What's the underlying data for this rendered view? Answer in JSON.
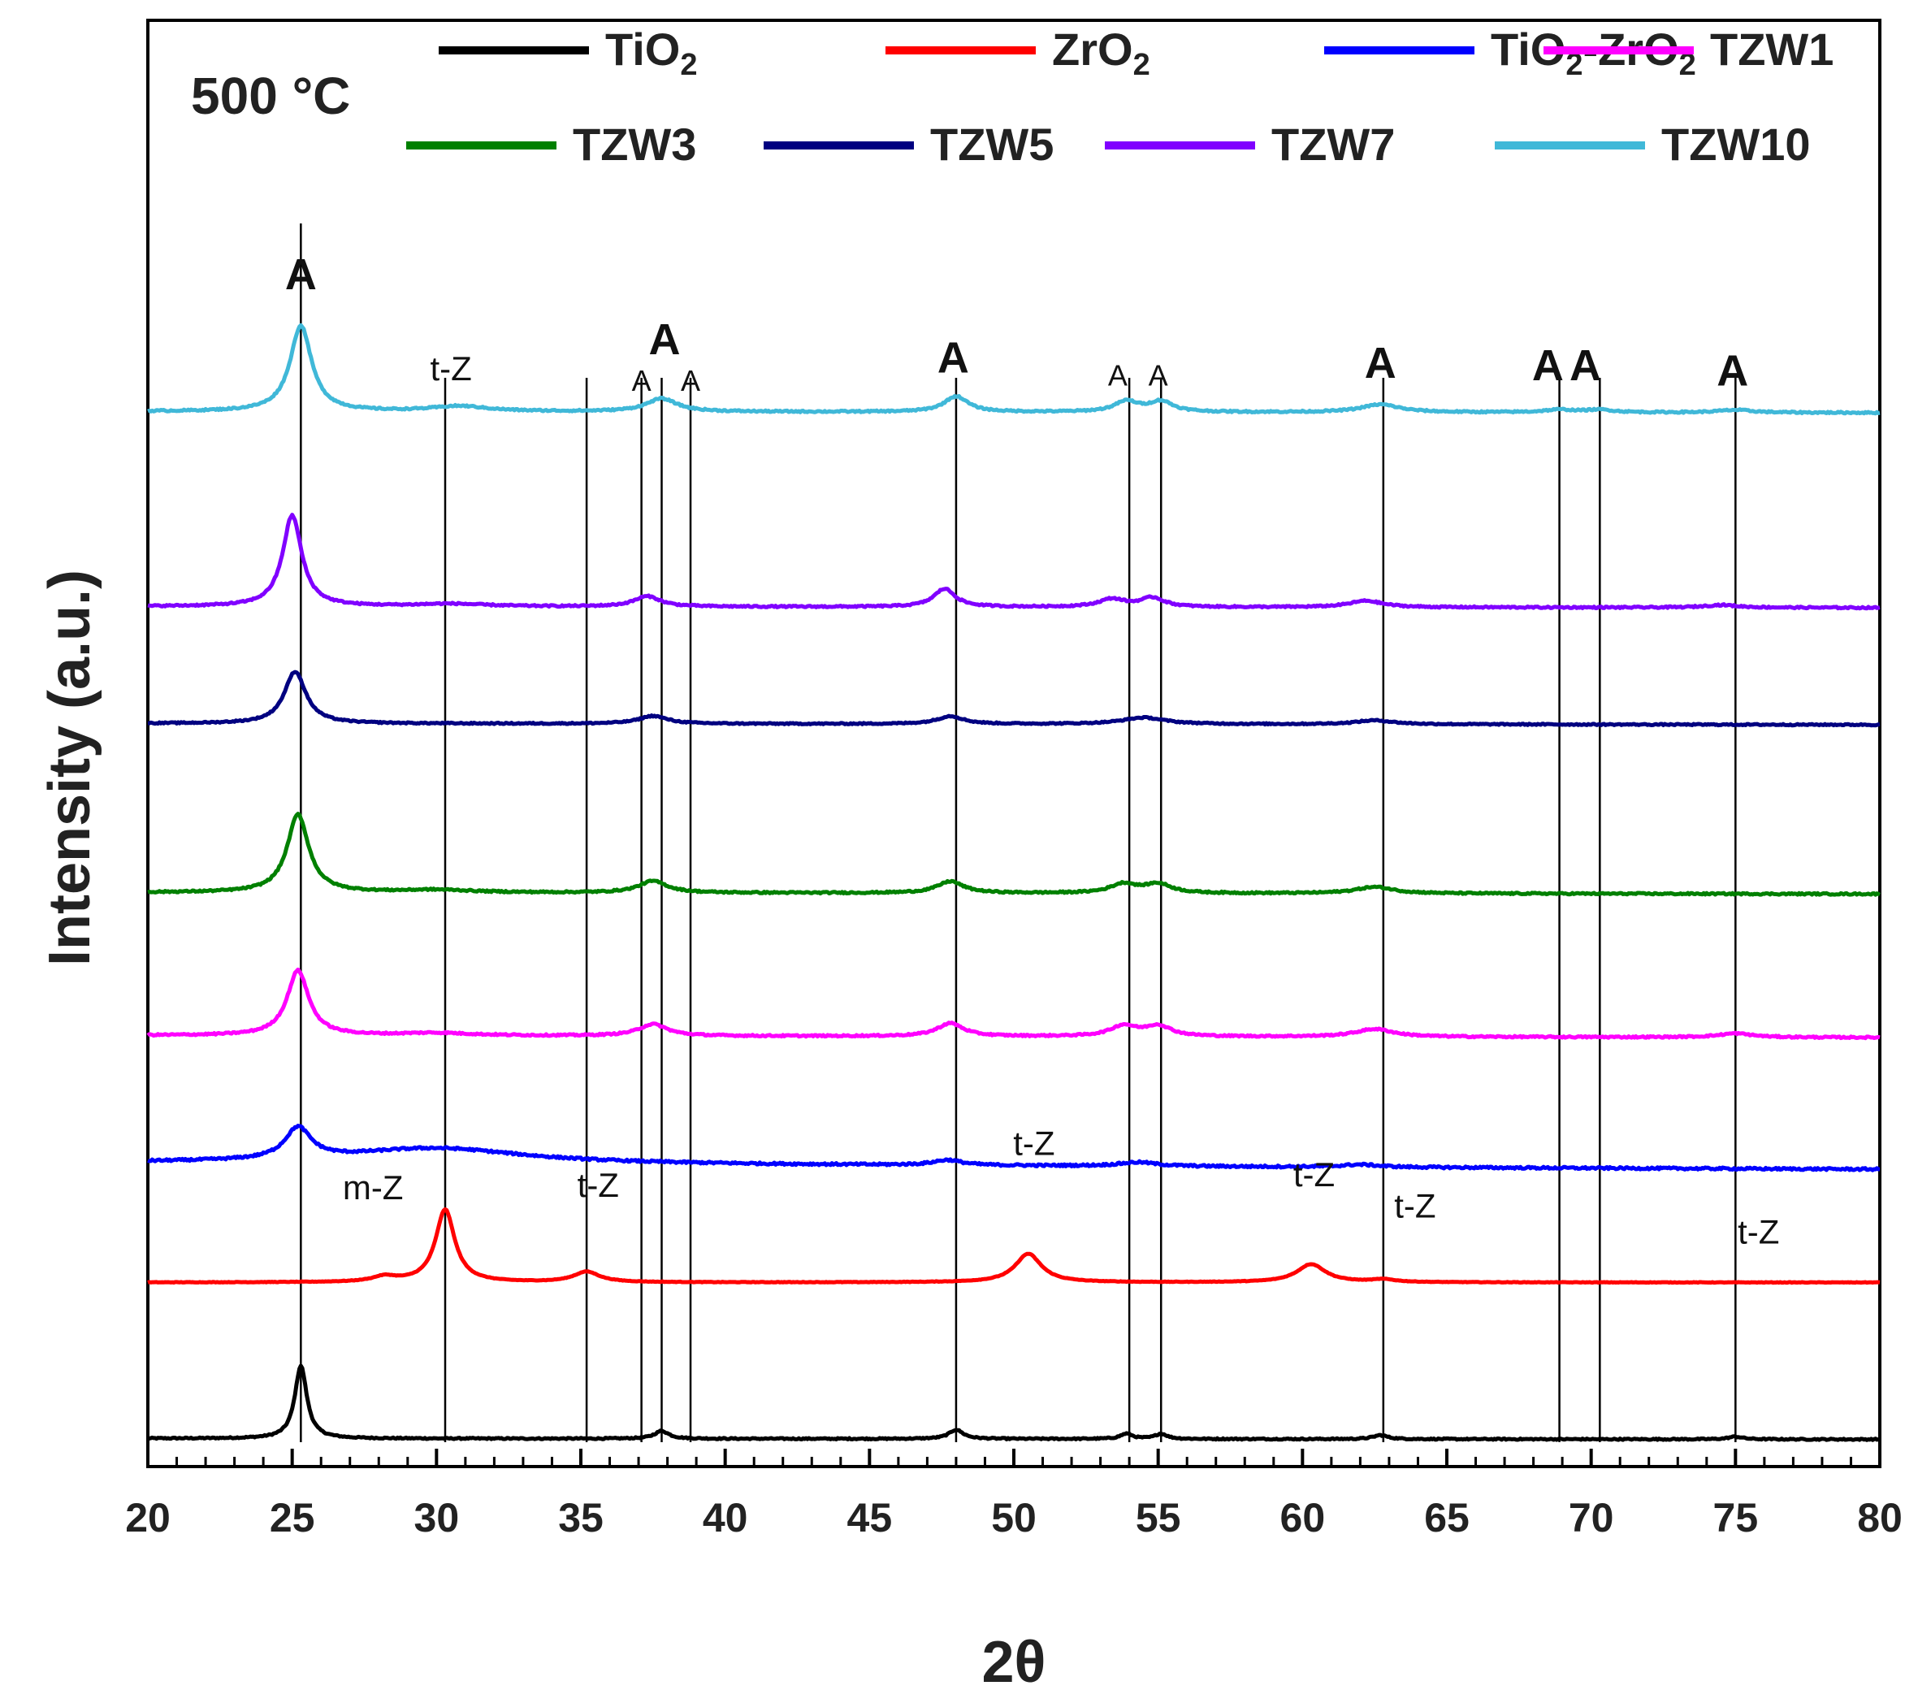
{
  "chart_data": {
    "type": "line",
    "title": "",
    "xlabel": "2θ",
    "ylabel": "Intensity (a.u.)",
    "xlim": [
      20,
      80
    ],
    "xticks": [
      "20",
      "25",
      "30",
      "35",
      "40",
      "45",
      "50",
      "55",
      "60",
      "65",
      "70",
      "75",
      "80"
    ],
    "temperature_label": "500 °C",
    "legend_placement": "top",
    "series": [
      {
        "name": "TiO",
        "sub": "2",
        "suffix": "",
        "sub2": "",
        "color": "#000000",
        "offset": 0,
        "baseline": 3,
        "drift": -0.35,
        "noise": 0.25,
        "peaks": [
          [
            25.3,
            28,
            0.25
          ],
          [
            37.8,
            3,
            0.3
          ],
          [
            48.0,
            3.5,
            0.3
          ],
          [
            53.9,
            2,
            0.25
          ],
          [
            55.1,
            2,
            0.25
          ],
          [
            62.7,
            1.5,
            0.3
          ],
          [
            75.0,
            1,
            0.3
          ]
        ]
      },
      {
        "name": "ZrO",
        "sub": "2",
        "suffix": "",
        "sub2": "",
        "color": "#ff0000",
        "offset": 60,
        "baseline": 3,
        "drift": 0,
        "noise": 0.1,
        "peaks": [
          [
            28.2,
            2,
            0.5
          ],
          [
            30.3,
            28,
            0.4
          ],
          [
            35.2,
            4,
            0.55
          ],
          [
            50.5,
            11,
            0.55
          ],
          [
            60.3,
            7,
            0.6
          ],
          [
            62.8,
            1,
            0.5
          ]
        ]
      },
      {
        "name": "TiO",
        "sub": "2",
        "suffix": "-ZrO",
        "sub2": "2",
        "color": "#0000ff",
        "offset": 105,
        "baseline": 4,
        "drift": -2.5,
        "noise": 0.4,
        "peaks": [
          [
            25.2,
            12,
            0.55
          ],
          [
            30.0,
            6,
            3.8
          ],
          [
            47.7,
            2,
            0.6
          ],
          [
            54.3,
            1.5,
            0.8
          ],
          [
            62.0,
            1,
            0.8
          ]
        ]
      },
      {
        "name": "TZW1",
        "sub": "",
        "suffix": "",
        "sub2": "",
        "color": "#ff00ff",
        "offset": 155,
        "baseline": 3,
        "drift": -0.8,
        "noise": 0.3,
        "peaks": [
          [
            25.2,
            25,
            0.45
          ],
          [
            30.0,
            1,
            1.5
          ],
          [
            37.5,
            4.5,
            0.6
          ],
          [
            47.8,
            5,
            0.55
          ],
          [
            53.8,
            4,
            0.55
          ],
          [
            55.0,
            4,
            0.55
          ],
          [
            62.5,
            3,
            0.8
          ],
          [
            75.0,
            1.5,
            0.7
          ]
        ]
      },
      {
        "name": "TZW3",
        "sub": "",
        "suffix": "",
        "sub2": "",
        "color": "#008000",
        "offset": 210,
        "baseline": 3,
        "drift": -0.6,
        "noise": 0.3,
        "peaks": [
          [
            25.2,
            30,
            0.45
          ],
          [
            30.0,
            1,
            1.5
          ],
          [
            37.5,
            4.5,
            0.6
          ],
          [
            47.8,
            4.5,
            0.55
          ],
          [
            53.8,
            3.5,
            0.55
          ],
          [
            55.0,
            3.5,
            0.55
          ],
          [
            62.5,
            2.5,
            0.8
          ]
        ]
      },
      {
        "name": "TZW5",
        "sub": "",
        "suffix": "",
        "sub2": "",
        "color": "#000080",
        "offset": 275,
        "baseline": 3,
        "drift": -0.5,
        "noise": 0.25,
        "peaks": [
          [
            25.1,
            20,
            0.45
          ],
          [
            37.5,
            3,
            0.6
          ],
          [
            47.8,
            3,
            0.55
          ],
          [
            54.5,
            2.5,
            0.9
          ],
          [
            62.5,
            1.5,
            0.8
          ]
        ]
      },
      {
        "name": "TZW7",
        "sub": "",
        "suffix": "",
        "sub2": "",
        "color": "#8000ff",
        "offset": 320,
        "baseline": 3,
        "drift": -0.5,
        "noise": 0.3,
        "peaks": [
          [
            25.0,
            35,
            0.4
          ],
          [
            30.5,
            1,
            1.5
          ],
          [
            37.3,
            4,
            0.55
          ],
          [
            47.6,
            7,
            0.45
          ],
          [
            53.4,
            3,
            0.55
          ],
          [
            54.8,
            3.5,
            0.5
          ],
          [
            62.2,
            2.5,
            0.7
          ],
          [
            74.5,
            1,
            0.7
          ]
        ]
      },
      {
        "name": "TZW10",
        "sub": "",
        "suffix": "",
        "sub2": "",
        "color": "#40b8d8",
        "offset": 395,
        "baseline": 3,
        "drift": -0.5,
        "noise": 0.3,
        "peaks": [
          [
            25.3,
            33,
            0.45
          ],
          [
            30.8,
            2,
            1.2
          ],
          [
            37.8,
            5,
            0.65
          ],
          [
            48.0,
            6,
            0.5
          ],
          [
            53.9,
            4,
            0.5
          ],
          [
            55.1,
            4,
            0.5
          ],
          [
            62.7,
            3,
            0.8
          ],
          [
            68.9,
            1,
            0.6
          ],
          [
            70.3,
            1,
            0.6
          ],
          [
            75.0,
            1,
            0.7
          ]
        ]
      }
    ],
    "reference_lines": [
      25.3,
      30.3,
      35.2,
      37.1,
      37.8,
      38.8,
      48.0,
      54.0,
      55.1,
      62.8,
      68.9,
      70.3,
      75.0
    ],
    "annotations": [
      {
        "text": "A",
        "x": 25.3,
        "y": 445,
        "size": "big"
      },
      {
        "text": "t-Z",
        "x": 30.5,
        "y": 410,
        "size": "tz"
      },
      {
        "text": "A",
        "x": 37.1,
        "y": 406,
        "size": "small"
      },
      {
        "text": "A",
        "x": 37.9,
        "y": 420,
        "size": "big"
      },
      {
        "text": "A",
        "x": 38.8,
        "y": 406,
        "size": "small"
      },
      {
        "text": "A",
        "x": 47.9,
        "y": 413,
        "size": "big"
      },
      {
        "text": "A",
        "x": 53.6,
        "y": 408,
        "size": "small"
      },
      {
        "text": "A",
        "x": 55.0,
        "y": 408,
        "size": "small"
      },
      {
        "text": "A",
        "x": 62.7,
        "y": 411,
        "size": "big"
      },
      {
        "text": "A",
        "x": 68.5,
        "y": 410,
        "size": "big"
      },
      {
        "text": "A",
        "x": 69.8,
        "y": 410,
        "size": "big"
      },
      {
        "text": "A",
        "x": 74.9,
        "y": 408,
        "size": "big"
      },
      {
        "text": "m-Z",
        "x": 27.8,
        "y": 95,
        "size": "tz"
      },
      {
        "text": "t-Z",
        "x": 35.6,
        "y": 96,
        "size": "tz"
      },
      {
        "text": "t-Z",
        "x": 50.7,
        "y": 112,
        "size": "tz"
      },
      {
        "text": "t-Z",
        "x": 60.4,
        "y": 100,
        "size": "tz"
      },
      {
        "text": "t-Z",
        "x": 63.9,
        "y": 88,
        "size": "tz"
      },
      {
        "text": "t-Z",
        "x": 75.8,
        "y": 78,
        "size": "tz"
      }
    ]
  }
}
